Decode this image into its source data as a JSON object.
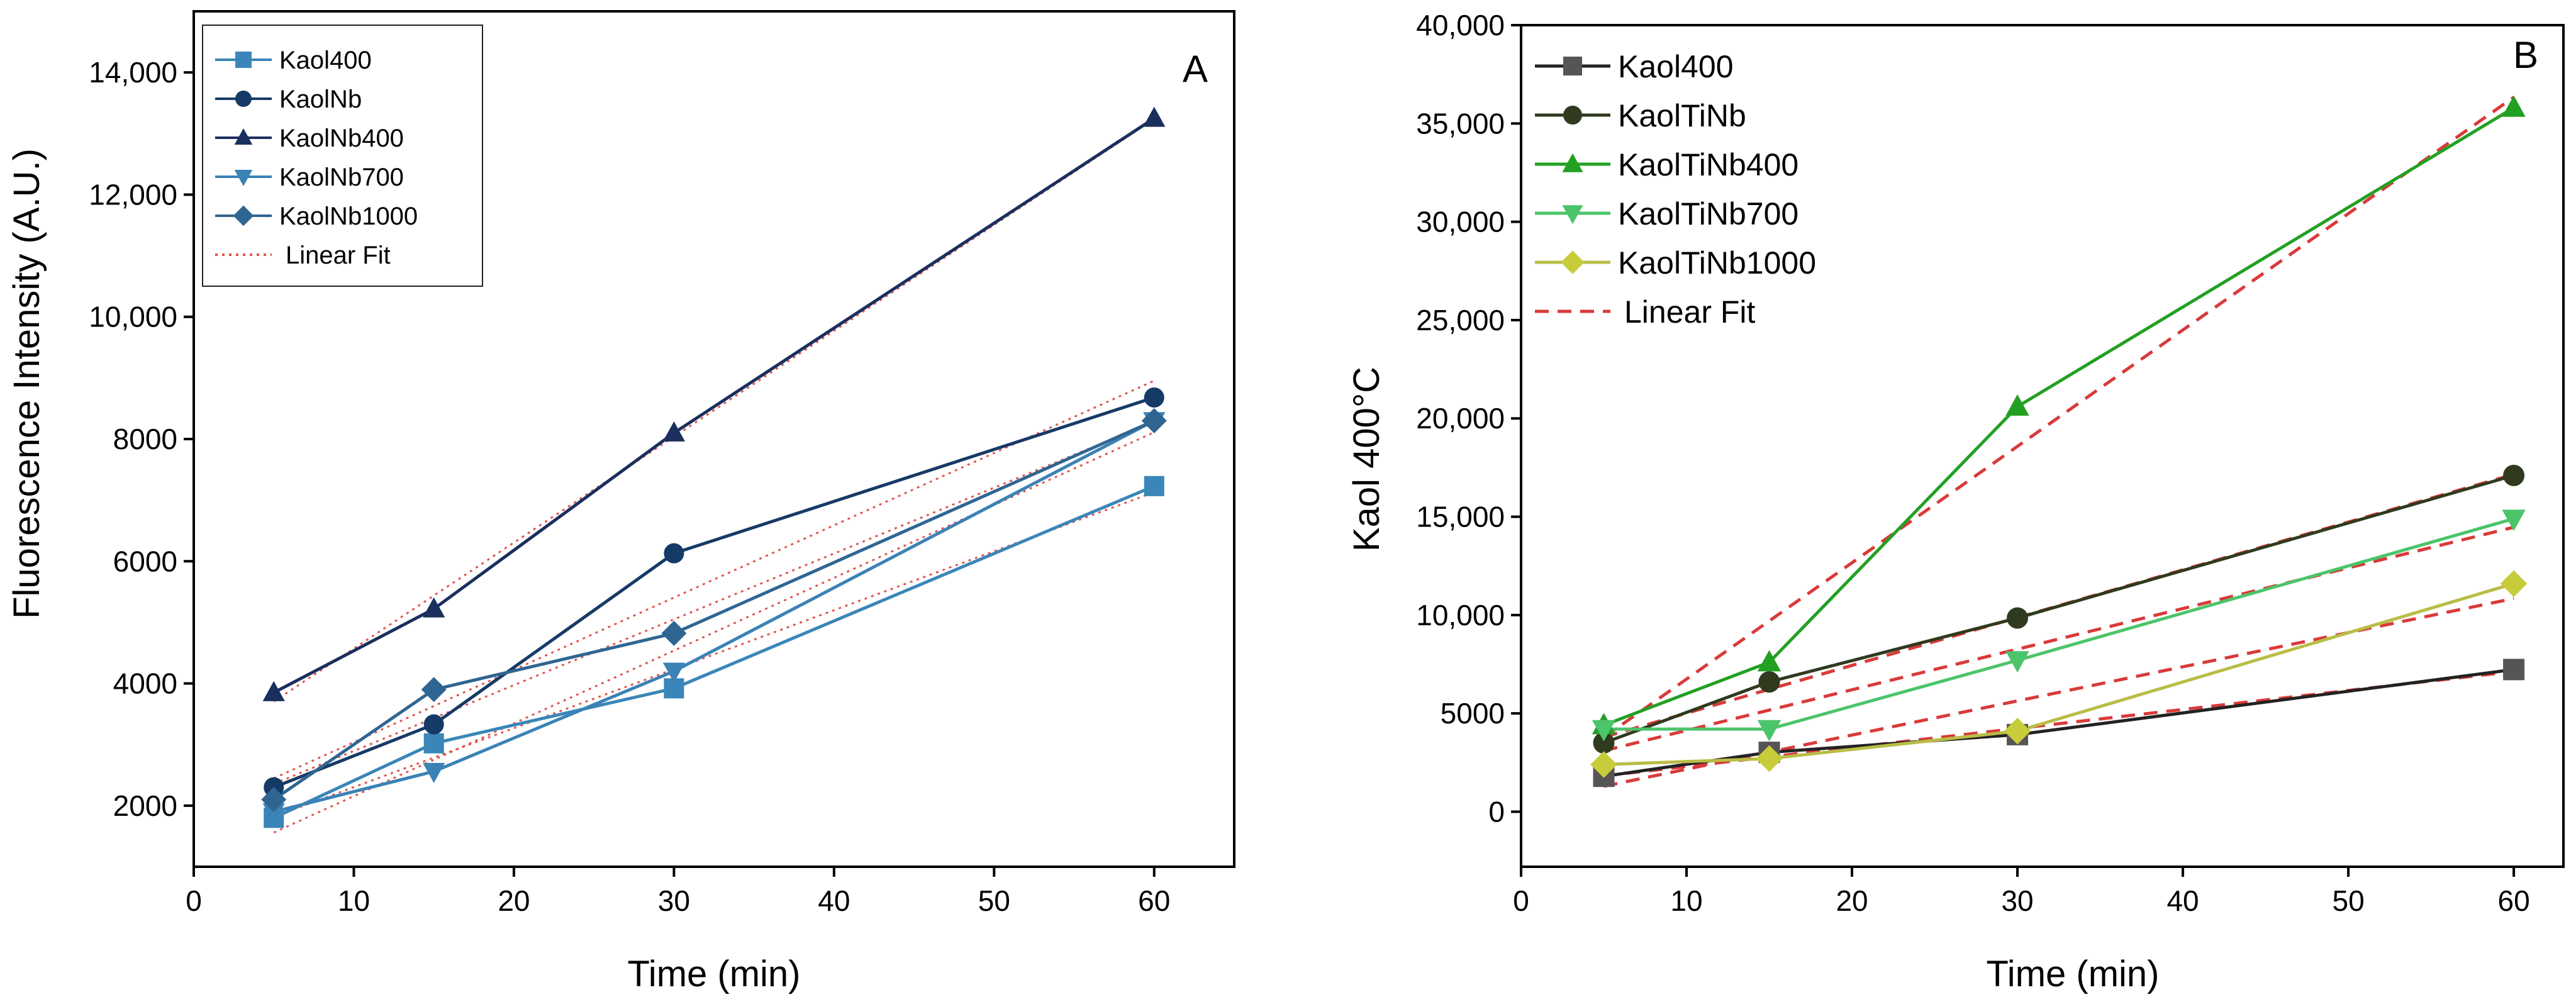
{
  "chart_data": [
    {
      "panel": "A",
      "type": "line",
      "title": "",
      "panel_label": "A",
      "xlabel": "Time (min)",
      "ylabel": "Fluorescence Intensity (A.U.)",
      "xlim": [
        0,
        65
      ],
      "ylim": [
        1000,
        15000
      ],
      "xticks": [
        0,
        10,
        20,
        30,
        40,
        50,
        60
      ],
      "xtick_labels": [
        "0",
        "10",
        "20",
        "30",
        "40",
        "50",
        "60"
      ],
      "yticks": [
        2000,
        4000,
        6000,
        8000,
        10000,
        12000,
        14000
      ],
      "ytick_labels": [
        "2000",
        "4000",
        "6000",
        "8000",
        "10,000",
        "12,000",
        "14,000"
      ],
      "x": [
        5,
        15,
        30,
        60
      ],
      "series": [
        {
          "name": "Kaol400",
          "marker": "square",
          "color": "#3a86b8",
          "values": [
            1800,
            3020,
            3920,
            7230
          ]
        },
        {
          "name": "KaolNb",
          "marker": "circle",
          "color": "#163a66",
          "values": [
            2300,
            3330,
            6130,
            8680
          ]
        },
        {
          "name": "KaolNb400",
          "marker": "triangle-up",
          "color": "#1a2f5e",
          "values": [
            3850,
            5220,
            8100,
            13250
          ]
        },
        {
          "name": "KaolNb700",
          "marker": "triangle-down",
          "color": "#3b82b5",
          "values": [
            1900,
            2560,
            4200,
            8300
          ]
        },
        {
          "name": "KaolNb1000",
          "marker": "diamond",
          "color": "#2f6592",
          "values": [
            2100,
            3900,
            4820,
            8300
          ]
        }
      ],
      "fit": {
        "name": "Linear Fit",
        "style": "dotted",
        "color": "#e0554e"
      },
      "legend": "top-left"
    },
    {
      "panel": "B",
      "type": "line",
      "title": "",
      "panel_label": "B",
      "xlabel": "Time (min)",
      "ylabel": "Kaol 400°C",
      "xlim": [
        0,
        63
      ],
      "ylim": [
        -2800,
        40000
      ],
      "xticks": [
        0,
        10,
        20,
        30,
        40,
        50,
        60
      ],
      "xtick_labels": [
        "0",
        "10",
        "20",
        "30",
        "40",
        "50",
        "60"
      ],
      "yticks": [
        0,
        5000,
        10000,
        15000,
        20000,
        25000,
        30000,
        35000,
        40000
      ],
      "ytick_labels": [
        "0",
        "5000",
        "10,000",
        "15,000",
        "20,000",
        "25,000",
        "30,000",
        "35,000",
        "40,000"
      ],
      "x": [
        5,
        15,
        30,
        60
      ],
      "series": [
        {
          "name": "Kaol400",
          "marker": "square",
          "color": "#555555",
          "line_color": "#222222",
          "values": [
            1800,
            3020,
            3920,
            7230
          ]
        },
        {
          "name": "KaolTiNb",
          "marker": "circle",
          "color": "#2f3a1e",
          "line_color": "#2f3a1e",
          "values": [
            3500,
            6600,
            9850,
            17100
          ]
        },
        {
          "name": "KaolTiNb400",
          "marker": "triangle-up",
          "color": "#22a022",
          "line_color": "#22a022",
          "values": [
            4400,
            7600,
            20600,
            35800
          ]
        },
        {
          "name": "KaolTiNb700",
          "marker": "triangle-down",
          "color": "#4cc46a",
          "line_color": "#4cc46a",
          "values": [
            4200,
            4200,
            7700,
            14900
          ]
        },
        {
          "name": "KaolTiNb1000",
          "marker": "diamond",
          "color": "#c7cc3a",
          "line_color": "#b9bd45",
          "values": [
            2400,
            2700,
            4100,
            11600
          ]
        }
      ],
      "fit": {
        "name": "Linear Fit",
        "style": "dashed",
        "color": "#d93a3a"
      },
      "legend": "top-left"
    }
  ]
}
